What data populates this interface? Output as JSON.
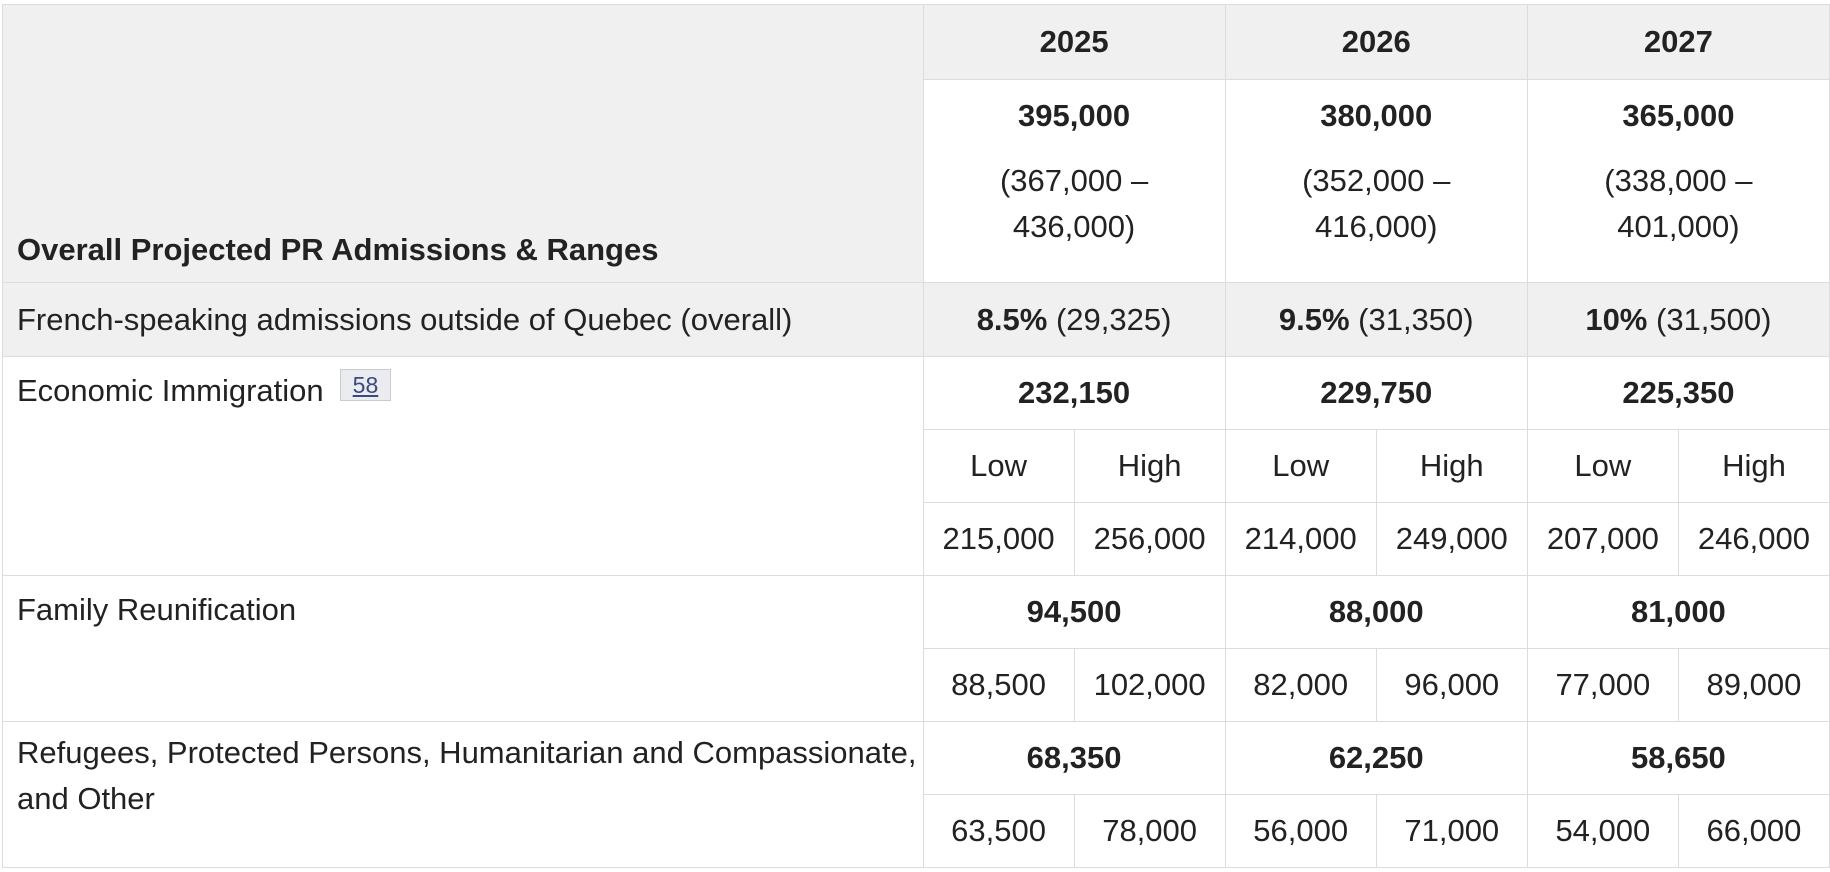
{
  "header": {
    "label": "Overall Projected PR Admissions & Ranges",
    "years": [
      "2025",
      "2026",
      "2027"
    ]
  },
  "overall": [
    {
      "total": "395,000",
      "range": "(367,000 – 436,000)"
    },
    {
      "total": "380,000",
      "range": "(352,000 – 416,000)"
    },
    {
      "total": "365,000",
      "range": "(338,000 – 401,000)"
    }
  ],
  "french": {
    "label": "French-speaking admissions outside of Quebec (overall)",
    "values": [
      {
        "pct": "8.5%",
        "count": "(29,325)"
      },
      {
        "pct": "9.5%",
        "count": "(31,350)"
      },
      {
        "pct": "10%",
        "count": "(31,500)"
      }
    ]
  },
  "economic": {
    "label": "Economic Immigration",
    "ref": "58",
    "totals": [
      "232,150",
      "229,750",
      "225,350"
    ],
    "low_label": "Low",
    "high_label": "High",
    "ranges": [
      {
        "low": "215,000",
        "high": "256,000"
      },
      {
        "low": "214,000",
        "high": "249,000"
      },
      {
        "low": "207,000",
        "high": "246,000"
      }
    ]
  },
  "family": {
    "label": "Family Reunification",
    "totals": [
      "94,500",
      "88,000",
      "81,000"
    ],
    "ranges": [
      {
        "low": "88,500",
        "high": "102,000"
      },
      {
        "low": "82,000",
        "high": "96,000"
      },
      {
        "low": "77,000",
        "high": "89,000"
      }
    ]
  },
  "refugees": {
    "label": "Refugees, Protected Persons, Humanitarian and Compassionate, and Other",
    "totals": [
      "68,350",
      "62,250",
      "58,650"
    ],
    "ranges": [
      {
        "low": "63,500",
        "high": "78,000"
      },
      {
        "low": "56,000",
        "high": "71,000"
      },
      {
        "low": "54,000",
        "high": "66,000"
      }
    ]
  }
}
